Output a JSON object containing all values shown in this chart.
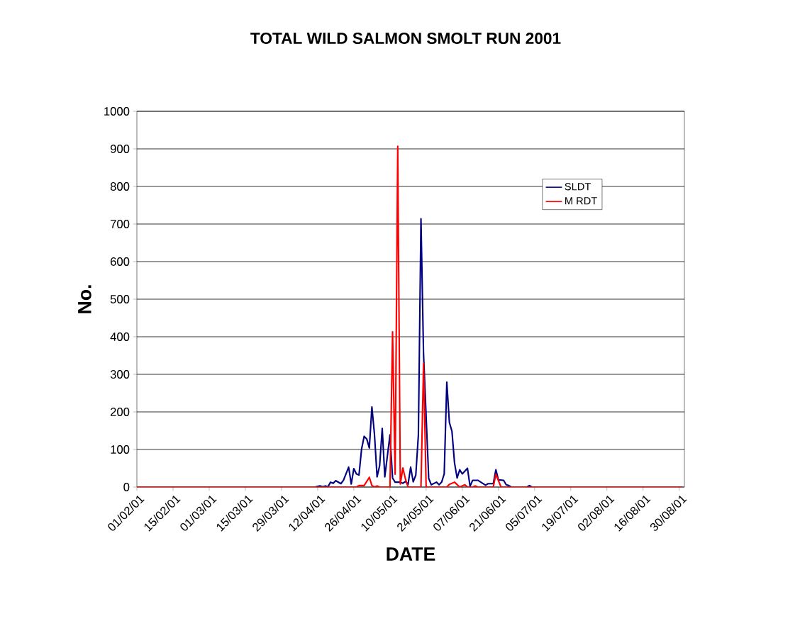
{
  "chart_data": {
    "type": "line",
    "title": "TOTAL WILD SALMON SMOLT RUN 2001",
    "xlabel": "DATE",
    "ylabel": "No.",
    "xlim": [
      "2001-02-01",
      "2001-09-01"
    ],
    "xticks": [
      {
        "value": "2001-02-01",
        "label": "01/02/01"
      },
      {
        "value": "2001-02-15",
        "label": "15/02/01"
      },
      {
        "value": "2001-03-01",
        "label": "01/03/01"
      },
      {
        "value": "2001-03-15",
        "label": "15/03/01"
      },
      {
        "value": "2001-03-29",
        "label": "29/03/01"
      },
      {
        "value": "2001-04-12",
        "label": "12/04/01"
      },
      {
        "value": "2001-04-26",
        "label": "26/04/01"
      },
      {
        "value": "2001-05-10",
        "label": "10/05/01"
      },
      {
        "value": "2001-05-24",
        "label": "24/05/01"
      },
      {
        "value": "2001-06-07",
        "label": "07/06/01"
      },
      {
        "value": "2001-06-21",
        "label": "21/06/01"
      },
      {
        "value": "2001-07-05",
        "label": "05/07/01"
      },
      {
        "value": "2001-07-19",
        "label": "19/07/01"
      },
      {
        "value": "2001-08-02",
        "label": "02/08/01"
      },
      {
        "value": "2001-08-16",
        "label": "16/08/01"
      },
      {
        "value": "2001-08-30",
        "label": "30/08/01"
      }
    ],
    "ylim": [
      0,
      1000
    ],
    "yticks": [
      0,
      100,
      200,
      300,
      400,
      500,
      600,
      700,
      800,
      900,
      1000
    ],
    "grid": "y",
    "legend": "right",
    "marker": "none",
    "line_style": "solid",
    "series": [
      {
        "name": "SLDT",
        "color": "#000080",
        "x": [
          "2001-02-01",
          "2001-04-11",
          "2001-04-12",
          "2001-04-13",
          "2001-04-14",
          "2001-04-15",
          "2001-04-16",
          "2001-04-17",
          "2001-04-18",
          "2001-04-19",
          "2001-04-21",
          "2001-04-22",
          "2001-04-24",
          "2001-04-25",
          "2001-04-26",
          "2001-04-27",
          "2001-04-28",
          "2001-04-29",
          "2001-04-30",
          "2001-05-01",
          "2001-05-02",
          "2001-05-03",
          "2001-05-04",
          "2001-05-05",
          "2001-05-06",
          "2001-05-07",
          "2001-05-08",
          "2001-05-10",
          "2001-05-11",
          "2001-05-12",
          "2001-05-14",
          "2001-05-15",
          "2001-05-16",
          "2001-05-17",
          "2001-05-18",
          "2001-05-19",
          "2001-05-20",
          "2001-05-21",
          "2001-05-22",
          "2001-05-23",
          "2001-05-25",
          "2001-05-26",
          "2001-05-28",
          "2001-05-29",
          "2001-05-30",
          "2001-05-31",
          "2001-06-01",
          "2001-06-02",
          "2001-06-03",
          "2001-06-04",
          "2001-06-05",
          "2001-06-06",
          "2001-06-07",
          "2001-06-09",
          "2001-06-10",
          "2001-06-11",
          "2001-06-13",
          "2001-06-16",
          "2001-06-17",
          "2001-06-19",
          "2001-06-20",
          "2001-06-21",
          "2001-06-23",
          "2001-06-24",
          "2001-06-25",
          "2001-06-26",
          "2001-07-02",
          "2001-07-03",
          "2001-07-04",
          "2001-08-31"
        ],
        "values": [
          0,
          0,
          2,
          3,
          1,
          3,
          1,
          13,
          10,
          17,
          9,
          18,
          53,
          8,
          49,
          35,
          32,
          101,
          135,
          128,
          104,
          213,
          140,
          27,
          57,
          156,
          27,
          139,
          24,
          13,
          13,
          10,
          15,
          7,
          53,
          14,
          32,
          139,
          714,
          353,
          23,
          6,
          13,
          6,
          13,
          35,
          279,
          172,
          148,
          64,
          24,
          46,
          35,
          50,
          2,
          18,
          18,
          5,
          9,
          9,
          46,
          19,
          18,
          6,
          4,
          0,
          0,
          4,
          0,
          0
        ]
      },
      {
        "name": "M RDT",
        "color": "#ff0000",
        "x": [
          "2001-02-01",
          "2001-04-27",
          "2001-04-28",
          "2001-04-30",
          "2001-05-02",
          "2001-05-03",
          "2001-05-04",
          "2001-05-05",
          "2001-05-06",
          "2001-05-10",
          "2001-05-11",
          "2001-05-12",
          "2001-05-13",
          "2001-05-14",
          "2001-05-15",
          "2001-05-16",
          "2001-05-17",
          "2001-05-22",
          "2001-05-23",
          "2001-05-24",
          "2001-06-01",
          "2001-06-02",
          "2001-06-04",
          "2001-06-06",
          "2001-06-08",
          "2001-06-09",
          "2001-06-11",
          "2001-06-12",
          "2001-06-13",
          "2001-06-19",
          "2001-06-20",
          "2001-06-22",
          "2001-08-31"
        ],
        "values": [
          0,
          0,
          4,
          4,
          26,
          4,
          0,
          3,
          0,
          0,
          413,
          34,
          907,
          8,
          51,
          21,
          0,
          0,
          330,
          0,
          0,
          7,
          13,
          0,
          6,
          0,
          0,
          3,
          0,
          0,
          34,
          0,
          0
        ]
      }
    ]
  }
}
